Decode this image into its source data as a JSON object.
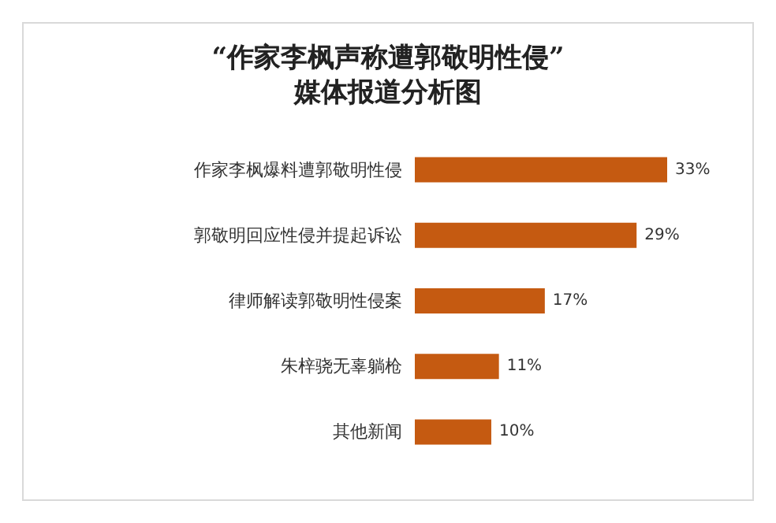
{
  "chart_data": {
    "type": "bar",
    "orientation": "horizontal",
    "title": "“作家李枫声称遭郭敬明性侵”\n媒体报道分析图",
    "categories": [
      "作家李枫爆料遭郭敬明性侵",
      "郭敬明回应性侵并提起诉讼",
      "律师解读郭敬明性侵案",
      "朱梓骁无辜躺枪",
      "其他新闻"
    ],
    "values": [
      33,
      29,
      17,
      11,
      10
    ],
    "value_labels": [
      "33%",
      "29%",
      "17%",
      "11%",
      "10%"
    ],
    "color": "#c55a11"
  }
}
